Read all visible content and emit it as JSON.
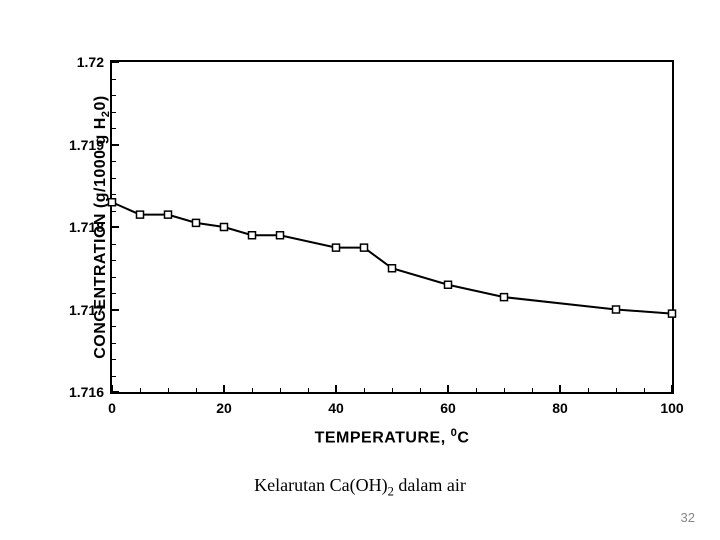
{
  "chart": {
    "type": "line-scatter",
    "xlabel": "TEMPERATURE, ",
    "xlabel_unit_prefix": "0",
    "xlabel_unit": "C",
    "ylabel_pre": "CONCENTRATION (g/1000 g H",
    "ylabel_sub": "2",
    "ylabel_post": "0)",
    "x": {
      "min": 0,
      "max": 100,
      "major_ticks": [
        0,
        20,
        40,
        60,
        80,
        100
      ],
      "minor_step": 5,
      "tick_labels": [
        "0",
        "20",
        "40",
        "60",
        "80",
        "100"
      ]
    },
    "y": {
      "min": 1.716,
      "max": 1.72,
      "major_ticks": [
        1.716,
        1.717,
        1.718,
        1.719,
        1.72
      ],
      "minor_step": 0.0002,
      "tick_labels": [
        "1.716",
        "1.717",
        "1.718",
        "1.719",
        "1.72"
      ]
    },
    "series": {
      "x": [
        0,
        5,
        10,
        15,
        20,
        25,
        30,
        40,
        45,
        50,
        60,
        70,
        90,
        100
      ],
      "y": [
        1.7183,
        1.71815,
        1.71815,
        1.71805,
        1.718,
        1.7179,
        1.7179,
        1.71775,
        1.71775,
        1.7175,
        1.7173,
        1.71715,
        1.717,
        1.71695
      ],
      "marker": "square",
      "marker_size": 7,
      "marker_stroke": "#000000",
      "marker_fill": "#ffffff",
      "line_color": "#000000",
      "line_width": 2
    },
    "plot_border_color": "#000000",
    "plot_border_width": 2,
    "background": "#ffffff",
    "label_fontsize": 16,
    "tick_fontsize": 14
  },
  "caption_pre": "Kelarutan Ca(OH)",
  "caption_sub": "2",
  "caption_post": " dalam air",
  "page_number": "32"
}
